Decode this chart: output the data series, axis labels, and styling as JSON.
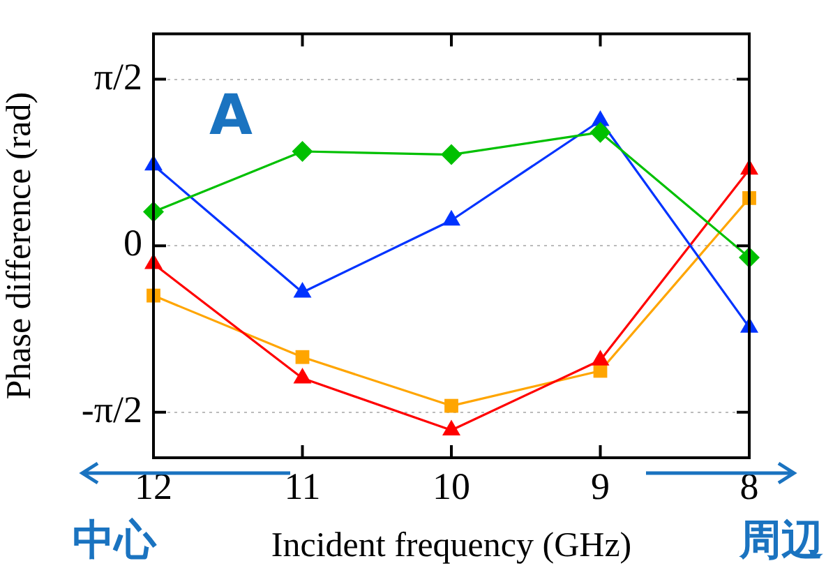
{
  "chart_data": {
    "type": "line",
    "xlabel": "Incident frequency (GHz)",
    "ylabel": "Phase difference (rad)",
    "x": [
      12,
      11,
      10,
      9,
      8
    ],
    "xlim": [
      12,
      8
    ],
    "xticks": [
      12,
      11,
      10,
      9,
      8
    ],
    "ylim": [
      -2,
      2
    ],
    "yticks": [
      {
        "value": -1.5708,
        "label": "-π/2"
      },
      0,
      {
        "value": 1.5708,
        "label": "π/2"
      }
    ],
    "grid": "y",
    "legend": false,
    "series": [
      {
        "color": "#00c000",
        "marker": "diamond",
        "values": [
          0.32,
          0.89,
          0.86,
          1.07,
          -0.11
        ]
      },
      {
        "color": "#0033ff",
        "marker": "triangle",
        "values": [
          0.76,
          -0.44,
          0.24,
          1.18,
          -0.77
        ]
      },
      {
        "color": "#ff0000",
        "marker": "triangle",
        "values": [
          -0.17,
          -1.25,
          -1.74,
          -1.08,
          0.72
        ]
      },
      {
        "color": "#ffa500",
        "marker": "square",
        "values": [
          -0.47,
          -1.05,
          -1.51,
          -1.18,
          0.45
        ]
      }
    ],
    "annotations": [
      "A",
      "中心",
      "周辺"
    ]
  }
}
